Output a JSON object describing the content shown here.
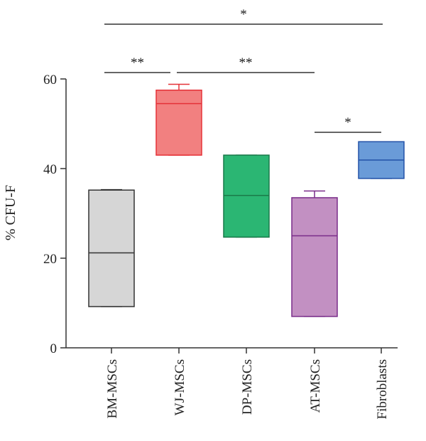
{
  "chart_data": {
    "type": "box",
    "ylabel": "% CFU-F",
    "ylim": [
      0,
      60
    ],
    "yticks": [
      "0",
      "20",
      "40",
      "60"
    ],
    "grid": false,
    "categories": [
      "BM-MSCs",
      "WJ-MSCs",
      "DP-MSCs",
      "AT-MSCs",
      "Fibroblasts"
    ],
    "boxes": [
      {
        "category": "BM-MSCs",
        "min": 9.2,
        "q1": 9.2,
        "median": 21.2,
        "q3": 35.2,
        "max": 35.3,
        "fill": "#d6d6d6",
        "stroke": "#333333"
      },
      {
        "category": "WJ-MSCs",
        "min": 43.0,
        "q1": 43.0,
        "median": 54.5,
        "q3": 57.5,
        "max": 58.8,
        "fill": "#f28080",
        "stroke": "#e53238"
      },
      {
        "category": "DP-MSCs",
        "min": 24.7,
        "q1": 24.7,
        "median": 34.0,
        "q3": 43.0,
        "max": 43.0,
        "fill": "#2bb673",
        "stroke": "#1a7a4a"
      },
      {
        "category": "AT-MSCs",
        "min": 7.0,
        "q1": 7.0,
        "median": 25.0,
        "q3": 33.5,
        "max": 35.0,
        "fill": "#c290c2",
        "stroke": "#7a2d8a"
      },
      {
        "category": "Fibroblasts",
        "min": 37.8,
        "q1": 37.8,
        "median": 41.9,
        "q3": 46.0,
        "max": 46.0,
        "fill": "#6a9bd8",
        "stroke": "#2352a8"
      }
    ],
    "significance": [
      {
        "from": 0,
        "to": 4,
        "label": "*"
      },
      {
        "from": 0,
        "to": 1,
        "label": "**"
      },
      {
        "from": 1,
        "to": 3,
        "label": "**"
      },
      {
        "from": 3,
        "to": 4,
        "label": "*"
      }
    ]
  }
}
